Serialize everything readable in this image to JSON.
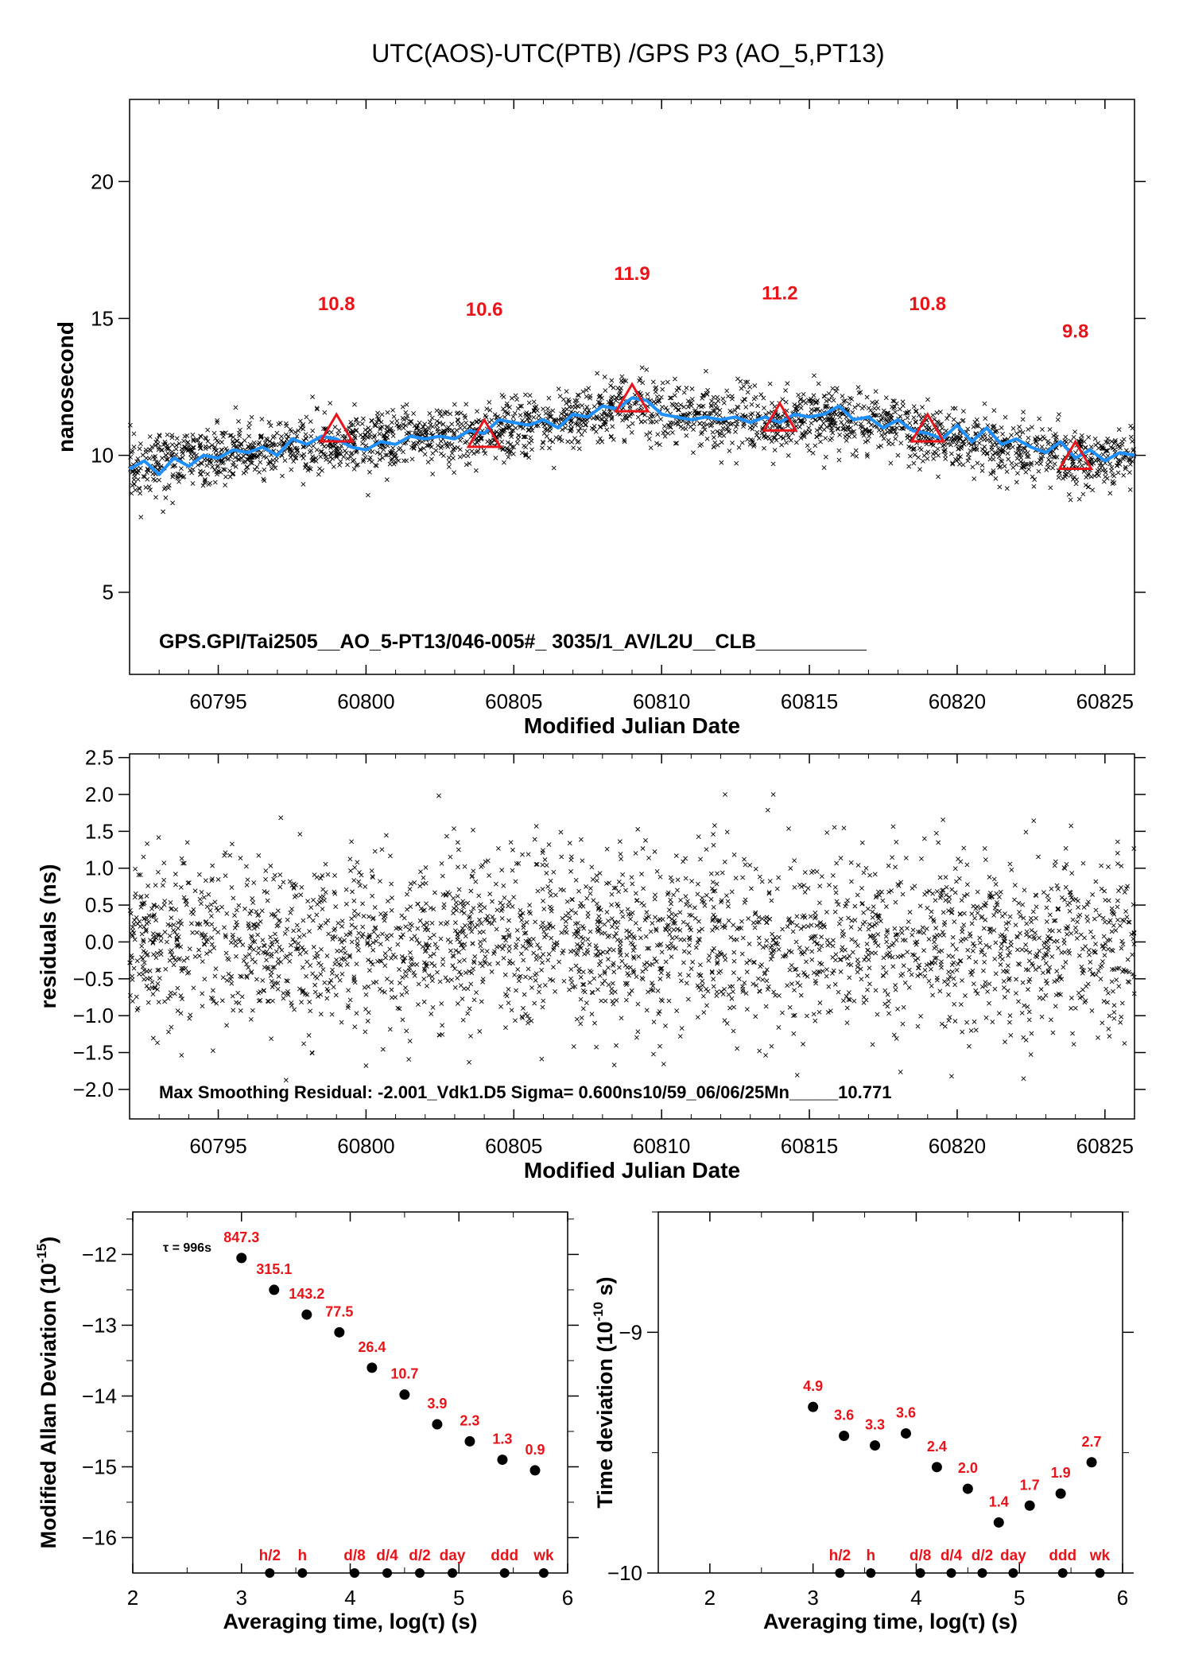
{
  "title": "UTC(AOS)-UTC(PTB)  /GPS  P3  (AO_5,PT13)",
  "colors": {
    "markers": "#000000",
    "smooth": "#1e90ff",
    "accent": "#e8141a",
    "text": "#000000"
  },
  "chart_data": [
    {
      "id": "time_series",
      "type": "scatter",
      "xlabel": "Modified Julian Date",
      "ylabel": "nanosecond",
      "xlim": [
        60792,
        60826
      ],
      "ylim": [
        2,
        23
      ],
      "xticks": [
        60795,
        60800,
        60805,
        60810,
        60815,
        60820,
        60825
      ],
      "yticks": [
        5,
        10,
        15,
        20
      ],
      "scatter_trend": {
        "x": [
          60792,
          60794,
          60796,
          60798,
          60800,
          60802,
          60804,
          60806,
          60808,
          60809,
          60810,
          60812,
          60814,
          60816,
          60818,
          60820,
          60822,
          60824,
          60826
        ],
        "y": [
          9.6,
          9.9,
          10.1,
          10.4,
          10.4,
          10.6,
          10.8,
          11.1,
          11.6,
          12.0,
          11.5,
          11.3,
          11.3,
          11.4,
          11.0,
          10.5,
          10.2,
          9.8,
          9.9
        ]
      },
      "smooth_curve": {
        "name": "",
        "x": [
          60792,
          60792.5,
          60793,
          60793.5,
          60794,
          60794.5,
          60795,
          60795.5,
          60796,
          60796.5,
          60797,
          60797.5,
          60798,
          60798.5,
          60799,
          60799.5,
          60800,
          60800.5,
          60801,
          60801.5,
          60802,
          60802.5,
          60803,
          60803.5,
          60804,
          60804.5,
          60805,
          60805.5,
          60806,
          60806.5,
          60807,
          60807.5,
          60808,
          60808.5,
          60809,
          60809.5,
          60810,
          60810.5,
          60811,
          60811.5,
          60812,
          60812.5,
          60813,
          60813.5,
          60814,
          60814.5,
          60815,
          60815.5,
          60816,
          60816.5,
          60817,
          60817.5,
          60818,
          60818.5,
          60819,
          60819.5,
          60820,
          60820.5,
          60821,
          60821.5,
          60822,
          60822.5,
          60823,
          60823.5,
          60824,
          60824.5,
          60825,
          60825.5,
          60826
        ],
        "y": [
          9.5,
          9.8,
          9.3,
          9.9,
          9.6,
          10.0,
          9.9,
          10.2,
          10.1,
          10.3,
          10.0,
          10.6,
          10.4,
          10.7,
          10.6,
          10.3,
          10.2,
          10.5,
          10.4,
          10.7,
          10.6,
          10.7,
          10.6,
          10.9,
          10.8,
          11.3,
          11.2,
          11.1,
          11.3,
          11.0,
          11.5,
          11.4,
          11.8,
          11.7,
          12.1,
          12.0,
          11.5,
          11.4,
          11.3,
          11.4,
          11.3,
          11.4,
          11.2,
          11.4,
          11.2,
          11.5,
          11.4,
          11.5,
          11.8,
          11.3,
          11.4,
          11.0,
          11.3,
          10.9,
          10.8,
          10.6,
          11.1,
          10.5,
          11.0,
          10.4,
          10.6,
          10.3,
          10.1,
          10.5,
          9.9,
          10.2,
          9.8,
          10.1,
          10.0
        ]
      },
      "triangles": {
        "x": [
          60799,
          60804,
          60809,
          60814,
          60819,
          60824
        ],
        "y": [
          10.8,
          10.6,
          11.9,
          11.2,
          10.8,
          9.8
        ],
        "labels": [
          "10.8",
          "10.6",
          "11.9",
          "11.2",
          "10.8",
          "9.8"
        ]
      },
      "annotation": "GPS.GPI/Tai2505__AO_5-PT13/046-005#_  3035/1_AV/L2U__CLB__________"
    },
    {
      "id": "residuals",
      "type": "scatter",
      "xlabel": "Modified Julian Date",
      "ylabel": "residuals (ns)",
      "xlim": [
        60792,
        60826
      ],
      "ylim": [
        -2.4,
        2.55
      ],
      "xticks": [
        60795,
        60800,
        60805,
        60810,
        60815,
        60820,
        60825
      ],
      "yticks": [
        2.5,
        2.0,
        1.5,
        1.0,
        0.5,
        0.0,
        -0.5,
        -1.0,
        -1.5,
        -2.0
      ],
      "ytick_labels": [
        "2.5",
        "2.0",
        "1.5",
        "1.0",
        "0.5",
        "0.0",
        "−0.5",
        "−1.0",
        "−1.5",
        "−2.0"
      ],
      "scatter_spread": {
        "center": 0,
        "sigma_ns": 0.6
      },
      "annotation": "Max Smoothing Residual: -2.001_Vdk1.D5  Sigma= 0.600ns10/59_06/06/25Mn_____10.771"
    },
    {
      "id": "mod_allan",
      "type": "scatter",
      "xlabel": "Averaging time, log(τ) (s)",
      "ylabel_main": "Modified Allan Deviation (10",
      "ylabel_sup": "-15",
      "ylabel_end": ")",
      "xlim": [
        2,
        6
      ],
      "ylim": [
        -16.5,
        -11.4
      ],
      "xticks": [
        2,
        3,
        4,
        5,
        6
      ],
      "yticks": [
        -12,
        -13,
        -14,
        -15,
        -16
      ],
      "ytick_labels": [
        "−12",
        "−13",
        "−14",
        "−15",
        "−16"
      ],
      "tau_note": "τ = 996s",
      "x": [
        3.0,
        3.3,
        3.6,
        3.9,
        4.2,
        4.5,
        4.8,
        5.1,
        5.4,
        5.7
      ],
      "y": [
        -12.05,
        -12.5,
        -12.85,
        -13.1,
        -13.6,
        -13.98,
        -14.4,
        -14.64,
        -14.9,
        -15.05
      ],
      "labels": [
        "847.3",
        "315.1",
        "143.2",
        "77.5",
        "26.4",
        "10.7",
        "3.9",
        "2.3",
        "1.3",
        "0.9"
      ],
      "markers_x": [
        3.26,
        3.56,
        4.04,
        4.34,
        4.64,
        4.94,
        5.42,
        5.78
      ],
      "markers_labels": [
        "h/2",
        "h",
        "d/8",
        "d/4",
        "d/2",
        "day",
        "ddd",
        "wk"
      ]
    },
    {
      "id": "time_dev",
      "type": "scatter",
      "xlabel": "Averaging time, log(τ) (s)",
      "ylabel_main": "Time deviation (10",
      "ylabel_sup": "-10",
      "ylabel_end": " s)",
      "xlim": [
        1.5,
        6
      ],
      "ylim": [
        -10.0,
        -8.5
      ],
      "xticks": [
        2,
        3,
        4,
        5,
        6
      ],
      "yticks": [
        -9,
        -10
      ],
      "ytick_labels": [
        "−9",
        "−10"
      ],
      "x": [
        3.0,
        3.3,
        3.6,
        3.9,
        4.2,
        4.5,
        4.8,
        5.1,
        5.4,
        5.7
      ],
      "y": [
        -9.31,
        -9.43,
        -9.47,
        -9.42,
        -9.56,
        -9.65,
        -9.79,
        -9.72,
        -9.67,
        -9.54
      ],
      "labels": [
        "4.9",
        "3.6",
        "3.3",
        "3.6",
        "2.4",
        "2.0",
        "1.4",
        "1.7",
        "1.9",
        "2.7"
      ],
      "markers_x": [
        3.26,
        3.56,
        4.04,
        4.34,
        4.64,
        4.94,
        5.42,
        5.78
      ],
      "markers_labels": [
        "h/2",
        "h",
        "d/8",
        "d/4",
        "d/2",
        "day",
        "ddd",
        "wk"
      ]
    }
  ]
}
